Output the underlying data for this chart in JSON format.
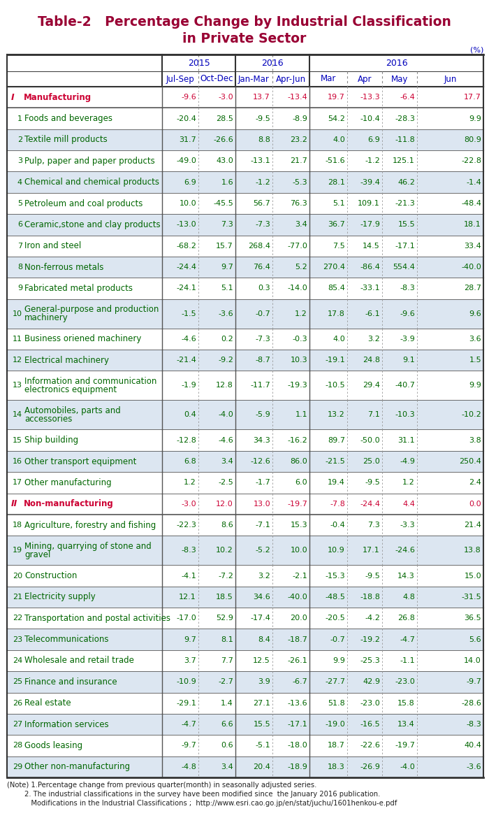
{
  "title_line1": "Table-2   Percentage Change by Industrial Classification",
  "title_line2": "in Private Sector",
  "title_color": "#990033",
  "unit_label": "(%)",
  "rows": [
    {
      "num": "I",
      "label": "Manufacturing",
      "label_color": "#cc0033",
      "num_color": "#cc0033",
      "data_color": "#cc0033",
      "values": [
        "-9.6",
        "-3.0",
        "13.7",
        "-13.4",
        "19.7",
        "-13.3",
        "-6.4",
        "17.7"
      ],
      "indent": 0,
      "multiline": false,
      "bg": "white"
    },
    {
      "num": "1",
      "label": "Foods and beverages",
      "label_color": "#006600",
      "num_color": "#006600",
      "data_color": "#006600",
      "values": [
        "-20.4",
        "28.5",
        "-9.5",
        "-8.9",
        "54.2",
        "-10.4",
        "-28.3",
        "9.9"
      ],
      "indent": 1,
      "multiline": false,
      "bg": "white"
    },
    {
      "num": "2",
      "label": "Textile mill products",
      "label_color": "#006600",
      "num_color": "#006600",
      "data_color": "#006600",
      "values": [
        "31.7",
        "-26.6",
        "8.8",
        "23.2",
        "4.0",
        "6.9",
        "-11.8",
        "80.9"
      ],
      "indent": 1,
      "multiline": false,
      "bg": "light"
    },
    {
      "num": "3",
      "label": "Pulp, paper and paper products",
      "label_color": "#006600",
      "num_color": "#006600",
      "data_color": "#006600",
      "values": [
        "-49.0",
        "43.0",
        "-13.1",
        "21.7",
        "-51.6",
        "-1.2",
        "125.1",
        "-22.8"
      ],
      "indent": 1,
      "multiline": false,
      "bg": "white"
    },
    {
      "num": "4",
      "label": "Chemical and chemical products",
      "label_color": "#006600",
      "num_color": "#006600",
      "data_color": "#006600",
      "values": [
        "6.9",
        "1.6",
        "-1.2",
        "-5.3",
        "28.1",
        "-39.4",
        "46.2",
        "-1.4"
      ],
      "indent": 1,
      "multiline": false,
      "bg": "light"
    },
    {
      "num": "5",
      "label": "Petroleum and coal products",
      "label_color": "#006600",
      "num_color": "#006600",
      "data_color": "#006600",
      "values": [
        "10.0",
        "-45.5",
        "56.7",
        "76.3",
        "5.1",
        "109.1",
        "-21.3",
        "-48.4"
      ],
      "indent": 1,
      "multiline": false,
      "bg": "white"
    },
    {
      "num": "6",
      "label": "Ceramic,stone and clay products",
      "label_color": "#006600",
      "num_color": "#006600",
      "data_color": "#006600",
      "values": [
        "-13.0",
        "7.3",
        "-7.3",
        "3.4",
        "36.7",
        "-17.9",
        "15.5",
        "18.1"
      ],
      "indent": 1,
      "multiline": false,
      "bg": "light"
    },
    {
      "num": "7",
      "label": "Iron and steel",
      "label_color": "#006600",
      "num_color": "#006600",
      "data_color": "#006600",
      "values": [
        "-68.2",
        "15.7",
        "268.4",
        "-77.0",
        "7.5",
        "14.5",
        "-17.1",
        "33.4"
      ],
      "indent": 1,
      "multiline": false,
      "bg": "white"
    },
    {
      "num": "8",
      "label": "Non-ferrous metals",
      "label_color": "#006600",
      "num_color": "#006600",
      "data_color": "#006600",
      "values": [
        "-24.4",
        "9.7",
        "76.4",
        "5.2",
        "270.4",
        "-86.4",
        "554.4",
        "-40.0"
      ],
      "indent": 1,
      "multiline": false,
      "bg": "light"
    },
    {
      "num": "9",
      "label": "Fabricated metal products",
      "label_color": "#006600",
      "num_color": "#006600",
      "data_color": "#006600",
      "values": [
        "-24.1",
        "5.1",
        "0.3",
        "-14.0",
        "85.4",
        "-33.1",
        "-8.3",
        "28.7"
      ],
      "indent": 1,
      "multiline": false,
      "bg": "white"
    },
    {
      "num": "10",
      "label": "General-purpose and production\nmachinery",
      "label_color": "#006600",
      "num_color": "#006600",
      "data_color": "#006600",
      "values": [
        "-1.5",
        "-3.6",
        "-0.7",
        "1.2",
        "17.8",
        "-6.1",
        "-9.6",
        "9.6"
      ],
      "indent": 1,
      "multiline": true,
      "bg": "light"
    },
    {
      "num": "11",
      "label": "Business oriened machinery",
      "label_color": "#006600",
      "num_color": "#006600",
      "data_color": "#006600",
      "values": [
        "-4.6",
        "0.2",
        "-7.3",
        "-0.3",
        "4.0",
        "3.2",
        "-3.9",
        "3.6"
      ],
      "indent": 1,
      "multiline": false,
      "bg": "white"
    },
    {
      "num": "12",
      "label": "Electrical machinery",
      "label_color": "#006600",
      "num_color": "#006600",
      "data_color": "#006600",
      "values": [
        "-21.4",
        "-9.2",
        "-8.7",
        "10.3",
        "-19.1",
        "24.8",
        "9.1",
        "1.5"
      ],
      "indent": 1,
      "multiline": false,
      "bg": "light"
    },
    {
      "num": "13",
      "label": "Information and communication\nelectronics equipment",
      "label_color": "#006600",
      "num_color": "#006600",
      "data_color": "#006600",
      "values": [
        "-1.9",
        "12.8",
        "-11.7",
        "-19.3",
        "-10.5",
        "29.4",
        "-40.7",
        "9.9"
      ],
      "indent": 1,
      "multiline": true,
      "bg": "white"
    },
    {
      "num": "14",
      "label": "Automobiles, parts and\naccessories",
      "label_color": "#006600",
      "num_color": "#006600",
      "data_color": "#006600",
      "values": [
        "0.4",
        "-4.0",
        "-5.9",
        "1.1",
        "13.2",
        "7.1",
        "-10.3",
        "-10.2"
      ],
      "indent": 1,
      "multiline": true,
      "bg": "light"
    },
    {
      "num": "15",
      "label": "Ship building",
      "label_color": "#006600",
      "num_color": "#006600",
      "data_color": "#006600",
      "values": [
        "-12.8",
        "-4.6",
        "34.3",
        "-16.2",
        "89.7",
        "-50.0",
        "31.1",
        "3.8"
      ],
      "indent": 1,
      "multiline": false,
      "bg": "white"
    },
    {
      "num": "16",
      "label": "Other transport equipment",
      "label_color": "#006600",
      "num_color": "#006600",
      "data_color": "#006600",
      "values": [
        "6.8",
        "3.4",
        "-12.6",
        "86.0",
        "-21.5",
        "25.0",
        "-4.9",
        "250.4"
      ],
      "indent": 1,
      "multiline": false,
      "bg": "light"
    },
    {
      "num": "17",
      "label": "Other manufacturing",
      "label_color": "#006600",
      "num_color": "#006600",
      "data_color": "#006600",
      "values": [
        "1.2",
        "-2.5",
        "-1.7",
        "6.0",
        "19.4",
        "-9.5",
        "1.2",
        "2.4"
      ],
      "indent": 1,
      "multiline": false,
      "bg": "white"
    },
    {
      "num": "II",
      "label": "Non-manufacturing",
      "label_color": "#cc0033",
      "num_color": "#cc0033",
      "data_color": "#cc0033",
      "values": [
        "-3.0",
        "12.0",
        "13.0",
        "-19.7",
        "-7.8",
        "-24.4",
        "4.4",
        "0.0"
      ],
      "indent": 0,
      "multiline": false,
      "bg": "white"
    },
    {
      "num": "18",
      "label": "Agriculture, forestry and fishing",
      "label_color": "#006600",
      "num_color": "#006600",
      "data_color": "#006600",
      "values": [
        "-22.3",
        "8.6",
        "-7.1",
        "15.3",
        "-0.4",
        "7.3",
        "-3.3",
        "21.4"
      ],
      "indent": 1,
      "multiline": false,
      "bg": "white"
    },
    {
      "num": "19",
      "label": "Mining, quarrying of stone and\ngravel",
      "label_color": "#006600",
      "num_color": "#006600",
      "data_color": "#006600",
      "values": [
        "-8.3",
        "10.2",
        "-5.2",
        "10.0",
        "10.9",
        "17.1",
        "-24.6",
        "13.8"
      ],
      "indent": 1,
      "multiline": true,
      "bg": "light"
    },
    {
      "num": "20",
      "label": "Construction",
      "label_color": "#006600",
      "num_color": "#006600",
      "data_color": "#006600",
      "values": [
        "-4.1",
        "-7.2",
        "3.2",
        "-2.1",
        "-15.3",
        "-9.5",
        "14.3",
        "15.0"
      ],
      "indent": 1,
      "multiline": false,
      "bg": "white"
    },
    {
      "num": "21",
      "label": "Electricity supply",
      "label_color": "#006600",
      "num_color": "#006600",
      "data_color": "#006600",
      "values": [
        "12.1",
        "18.5",
        "34.6",
        "-40.0",
        "-48.5",
        "-18.8",
        "4.8",
        "-31.5"
      ],
      "indent": 1,
      "multiline": false,
      "bg": "light"
    },
    {
      "num": "22",
      "label": "Transportation and postal activities",
      "label_color": "#006600",
      "num_color": "#006600",
      "data_color": "#006600",
      "values": [
        "-17.0",
        "52.9",
        "-17.4",
        "20.0",
        "-20.5",
        "-4.2",
        "26.8",
        "36.5"
      ],
      "indent": 1,
      "multiline": false,
      "bg": "white"
    },
    {
      "num": "23",
      "label": "Telecommunications",
      "label_color": "#006600",
      "num_color": "#006600",
      "data_color": "#006600",
      "values": [
        "9.7",
        "8.1",
        "8.4",
        "-18.7",
        "-0.7",
        "-19.2",
        "-4.7",
        "5.6"
      ],
      "indent": 1,
      "multiline": false,
      "bg": "light"
    },
    {
      "num": "24",
      "label": "Wholesale and retail trade",
      "label_color": "#006600",
      "num_color": "#006600",
      "data_color": "#006600",
      "values": [
        "3.7",
        "7.7",
        "12.5",
        "-26.1",
        "9.9",
        "-25.3",
        "-1.1",
        "14.0"
      ],
      "indent": 1,
      "multiline": false,
      "bg": "white"
    },
    {
      "num": "25",
      "label": "Finance and insurance",
      "label_color": "#006600",
      "num_color": "#006600",
      "data_color": "#006600",
      "values": [
        "-10.9",
        "-2.7",
        "3.9",
        "-6.7",
        "-27.7",
        "42.9",
        "-23.0",
        "-9.7"
      ],
      "indent": 1,
      "multiline": false,
      "bg": "light"
    },
    {
      "num": "26",
      "label": "Real estate",
      "label_color": "#006600",
      "num_color": "#006600",
      "data_color": "#006600",
      "values": [
        "-29.1",
        "1.4",
        "27.1",
        "-13.6",
        "51.8",
        "-23.0",
        "15.8",
        "-28.6"
      ],
      "indent": 1,
      "multiline": false,
      "bg": "white"
    },
    {
      "num": "27",
      "label": "Information services",
      "label_color": "#006600",
      "num_color": "#006600",
      "data_color": "#006600",
      "values": [
        "-4.7",
        "6.6",
        "15.5",
        "-17.1",
        "-19.0",
        "-16.5",
        "13.4",
        "-8.3"
      ],
      "indent": 1,
      "multiline": false,
      "bg": "light"
    },
    {
      "num": "28",
      "label": "Goods leasing",
      "label_color": "#006600",
      "num_color": "#006600",
      "data_color": "#006600",
      "values": [
        "-9.7",
        "0.6",
        "-5.1",
        "-18.0",
        "18.7",
        "-22.6",
        "-19.7",
        "40.4"
      ],
      "indent": 1,
      "multiline": false,
      "bg": "white"
    },
    {
      "num": "29",
      "label": "Other non-manufacturing",
      "label_color": "#006600",
      "num_color": "#006600",
      "data_color": "#006600",
      "values": [
        "-4.8",
        "3.4",
        "20.4",
        "-18.9",
        "18.3",
        "-26.9",
        "-4.0",
        "-3.6"
      ],
      "indent": 1,
      "multiline": false,
      "bg": "light"
    }
  ],
  "footnotes": [
    "(Note) 1.Percentage change from previous quarter(month) in seasonally adjusted series.",
    "        2. The industrial classifications in the survey have been modified since  the January 2016 publication.",
    "           Modifications in the Industrial Classifications ;  http://www.esri.cao.go.jp/en/stat/juchu/1601henkou-e.pdf"
  ]
}
